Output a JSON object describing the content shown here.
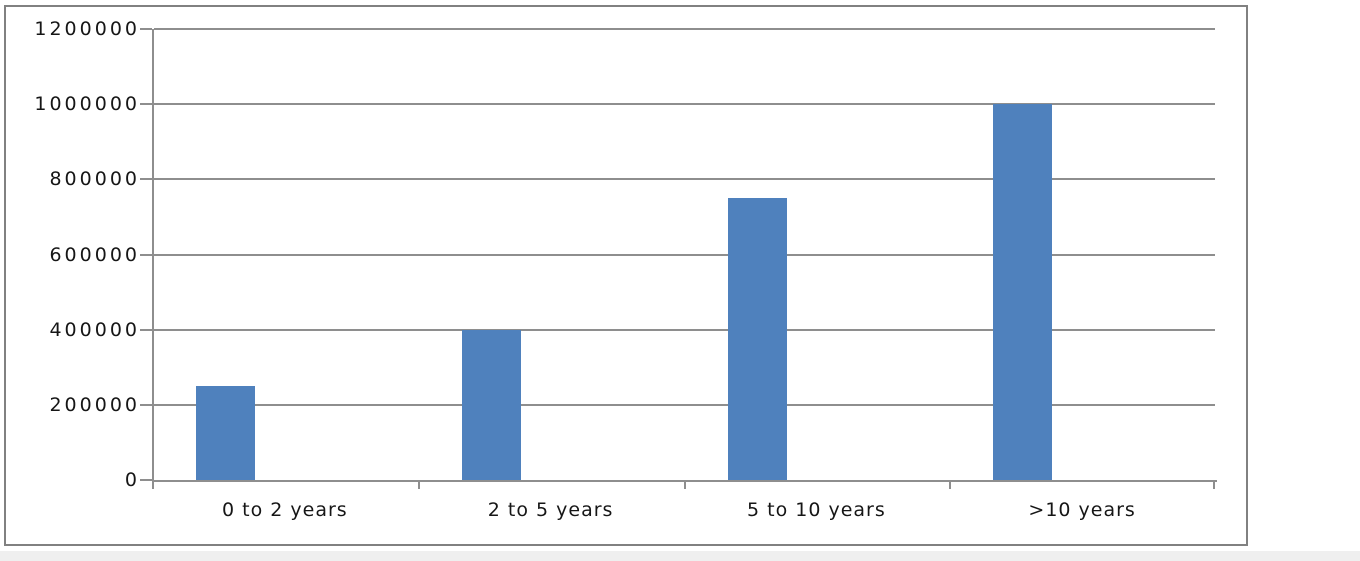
{
  "chart_data": {
    "type": "bar",
    "title": "",
    "xlabel": "",
    "ylabel": "",
    "categories": [
      "0 to 2 years",
      "2 to 5 years",
      "5 to 10 years",
      ">10 years"
    ],
    "values": [
      250000,
      400000,
      750000,
      1000000
    ],
    "ylim": [
      0,
      1200000
    ],
    "ytick_interval": 200000,
    "yticks": [
      0,
      200000,
      400000,
      600000,
      800000,
      1000000,
      1200000
    ],
    "ytick_labels": [
      "0",
      "200000",
      "400000",
      "600000",
      "800000",
      "1000000",
      "1200000"
    ],
    "grid": true,
    "legend_position": "none",
    "bar_color": "#4F81BD",
    "gridline_color": "#8E8E8E",
    "frame_border_color": "#818181",
    "text_color": "#161616",
    "background_color": "#FFFFFF"
  }
}
